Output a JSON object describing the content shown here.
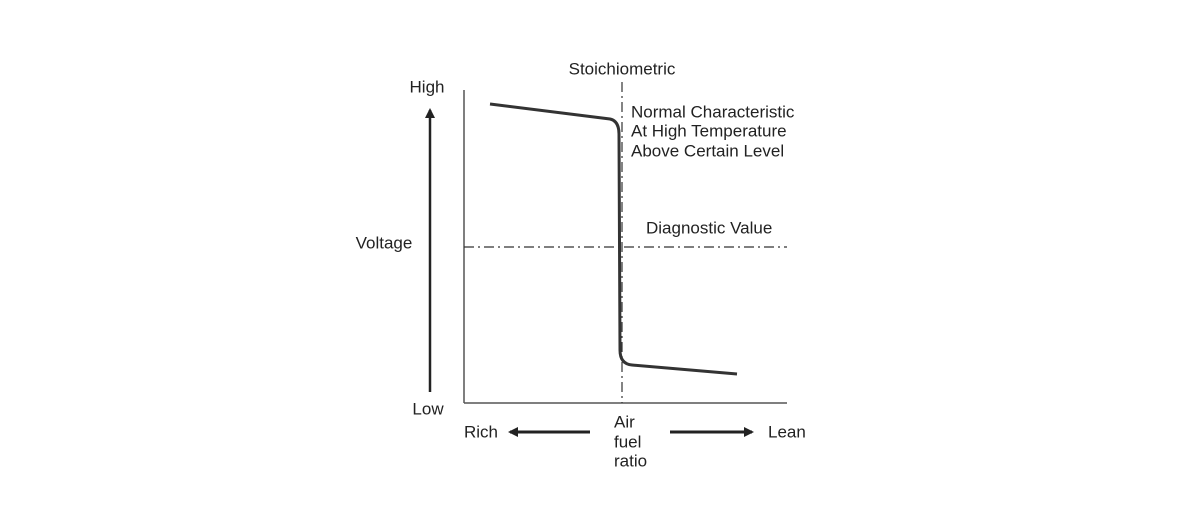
{
  "y_axis": {
    "top_label": "High",
    "bottom_label": "Low",
    "title": "Voltage"
  },
  "x_axis": {
    "left_label": "Rich",
    "right_label": "Lean",
    "title_lines": [
      "Air",
      "fuel",
      "ratio"
    ]
  },
  "stoichiometric_label": "Stoichiometric",
  "curve_annotation": [
    "Normal Characteristic",
    "At High Temperature",
    "Above Certain Level"
  ],
  "diagnostic_label": "Diagnostic Value"
}
